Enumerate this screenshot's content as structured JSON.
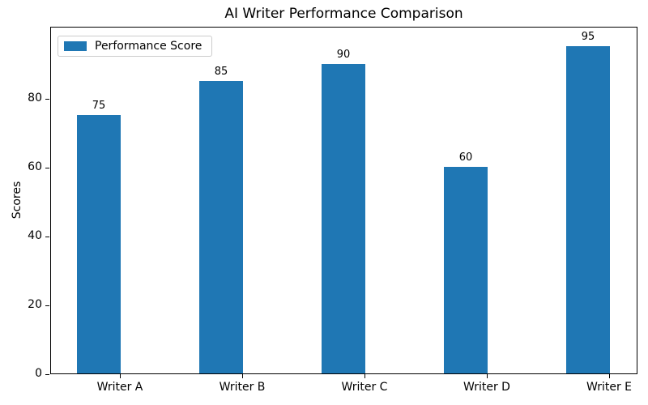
{
  "chart_data": {
    "type": "bar",
    "title": "AI Writer Performance Comparison",
    "xlabel": "",
    "ylabel": "Scores",
    "categories": [
      "Writer A",
      "Writer B",
      "Writer C",
      "Writer D",
      "Writer E"
    ],
    "series": [
      {
        "name": "Performance Score",
        "values": [
          75,
          85,
          90,
          60,
          95
        ],
        "color": "#1f77b4"
      }
    ],
    "bar_value_labels": [
      "75",
      "85",
      "90",
      "60",
      "95"
    ],
    "ylim": [
      0,
      101
    ],
    "yticks": [
      0,
      20,
      40,
      60,
      80
    ],
    "grid": false,
    "legend_position": "upper-left",
    "background_color": "#ffffff",
    "text_color": "#000000"
  }
}
